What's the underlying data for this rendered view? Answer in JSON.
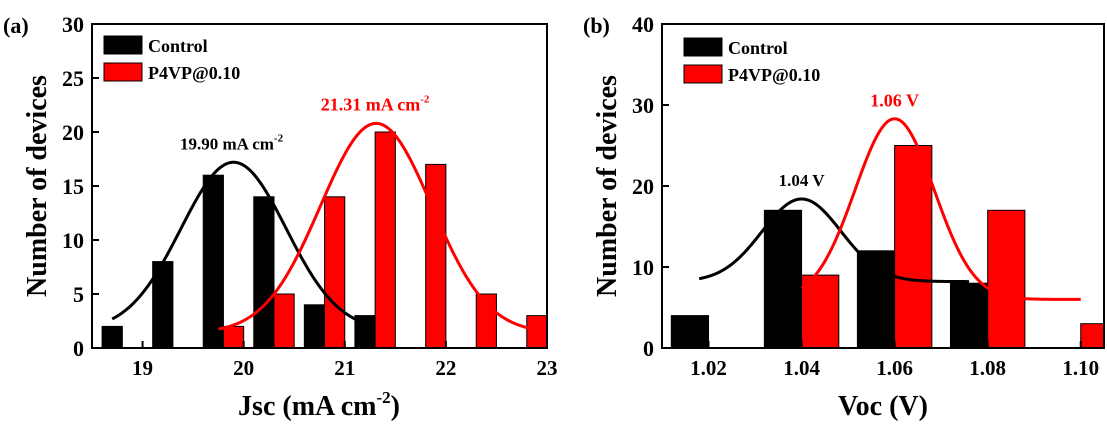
{
  "chart_data": [
    {
      "type": "bar",
      "panel_label": "(a)",
      "xlabel": "Jsc (mA cm",
      "xlabel_sup": "-2",
      "xlabel_close": ")",
      "ylabel": "Number of devices",
      "xlim": [
        18.5,
        23.0
      ],
      "ylim": [
        0,
        30
      ],
      "xticks": [
        "19",
        "20",
        "21",
        "22",
        "23"
      ],
      "xtick_values": [
        19,
        20,
        21,
        22,
        23
      ],
      "yticks": [
        "0",
        "5",
        "10",
        "15",
        "20",
        "25",
        "30"
      ],
      "ytick_values": [
        0,
        5,
        10,
        15,
        20,
        25,
        30
      ],
      "bar_width": 0.2,
      "legend_position": "top-left",
      "series": [
        {
          "name": "Control",
          "color": "#000000",
          "bars": [
            {
              "x": 18.7,
              "value": 2
            },
            {
              "x": 19.2,
              "value": 8
            },
            {
              "x": 19.7,
              "value": 16
            },
            {
              "x": 20.2,
              "value": 14
            },
            {
              "x": 20.7,
              "value": 4
            },
            {
              "x": 21.2,
              "value": 3
            }
          ],
          "fit": {
            "mean": 19.9,
            "sigma": 0.52,
            "amplitude": 15.6,
            "offset": 1.6,
            "x_range": [
              18.7,
              21.2
            ]
          },
          "annotation": {
            "text": "19.90 mA cm",
            "sup": "-2",
            "x": 19.88,
            "y": 18.4
          }
        },
        {
          "name": "P4VP@0.10",
          "color": "#ff0000",
          "bars": [
            {
              "x": 19.9,
              "value": 2
            },
            {
              "x": 20.4,
              "value": 5
            },
            {
              "x": 20.9,
              "value": 14
            },
            {
              "x": 21.4,
              "value": 20
            },
            {
              "x": 21.9,
              "value": 17
            },
            {
              "x": 22.4,
              "value": 5
            },
            {
              "x": 22.9,
              "value": 3
            }
          ],
          "fit": {
            "mean": 21.31,
            "sigma": 0.55,
            "amplitude": 19.4,
            "offset": 1.4,
            "x_range": [
              19.75,
              22.9
            ]
          },
          "annotation": {
            "text": "21.31 mA cm",
            "sup": "-2",
            "x": 21.3,
            "y": 22.0
          }
        }
      ]
    },
    {
      "type": "bar",
      "panel_label": "(b)",
      "xlabel": "Voc (V)",
      "ylabel": "Number of devices",
      "xlim": [
        1.01,
        1.105
      ],
      "ylim": [
        0,
        40
      ],
      "xticks": [
        "1.02",
        "1.04",
        "1.06",
        "1.08",
        "1.10"
      ],
      "xtick_values": [
        1.02,
        1.04,
        1.06,
        1.08,
        1.1
      ],
      "yticks": [
        "0",
        "10",
        "20",
        "30",
        "40"
      ],
      "ytick_values": [
        0,
        10,
        20,
        30,
        40
      ],
      "bar_width": 0.008,
      "legend_position": "top-left",
      "series": [
        {
          "name": "Control",
          "color": "#000000",
          "bars": [
            {
              "x": 1.016,
              "value": 4
            },
            {
              "x": 1.036,
              "value": 17
            },
            {
              "x": 1.056,
              "value": 12
            },
            {
              "x": 1.076,
              "value": 8
            }
          ],
          "fit": {
            "mean": 1.04,
            "sigma": 0.0085,
            "amplitude": 10.2,
            "offset": 8.2,
            "x_range": [
              1.018,
              1.076
            ]
          },
          "annotation": {
            "text": "1.04 V",
            "x": 1.04,
            "y": 20.0
          }
        },
        {
          "name": "P4VP@0.10",
          "color": "#ff0000",
          "bars": [
            {
              "x": 1.044,
              "value": 9
            },
            {
              "x": 1.064,
              "value": 25
            },
            {
              "x": 1.084,
              "value": 17
            },
            {
              "x": 1.104,
              "value": 3
            }
          ],
          "fit": {
            "mean": 1.06,
            "sigma": 0.0085,
            "amplitude": 22.3,
            "offset": 6.0,
            "x_range": [
              1.04,
              1.1
            ]
          },
          "annotation": {
            "text": "1.06 V",
            "x": 1.06,
            "y": 29.8
          }
        }
      ]
    }
  ]
}
